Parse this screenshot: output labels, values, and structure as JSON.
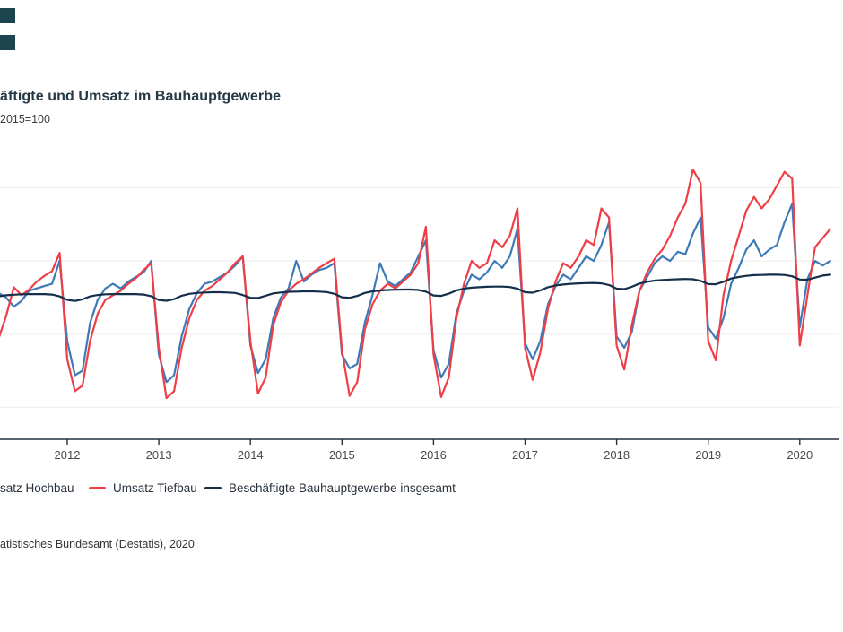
{
  "header": {
    "title": "äftigte und Umsatz im Bauhauptgewerbe",
    "subtitle": "2015=100"
  },
  "decor": {
    "square_color": "#1d4550"
  },
  "legend": {
    "items": [
      {
        "label": "satz Hochbau",
        "color": "#3d7ab7",
        "dash_visible": false
      },
      {
        "label": "Umsatz Tiefbau",
        "color": "#ef3e46",
        "dash_visible": true
      },
      {
        "label": "Beschäftigte Bauhauptgewerbe insgesamt",
        "color": "#142f49",
        "dash_visible": true
      }
    ]
  },
  "source": "atistisches Bundesamt (Destatis), 2020",
  "chart_data": {
    "type": "line",
    "title": "äftigte und Umsatz im Bauhauptgewerbe",
    "subtitle_unit": "2015=100",
    "frequency": "monthly",
    "x_start": "2011-04",
    "x_tick_labels": [
      "2012",
      "2013",
      "2014",
      "2015",
      "2016",
      "2017",
      "2018",
      "2019",
      "2020"
    ],
    "grid_on": true,
    "grid_values": [
      49,
      81,
      113,
      145
    ],
    "ylim": [
      35,
      162
    ],
    "legend_position": "bottom",
    "axis_color": "#223140",
    "grid_color": "#ededed",
    "series": [
      {
        "name": "Umsatz Hochbau",
        "color": "#3d7ab7",
        "values": [
          99,
          97,
          93,
          95.5,
          100,
          101,
          102,
          103,
          113,
          78,
          63,
          65,
          86,
          96,
          101,
          103,
          101,
          104,
          106,
          108,
          113,
          72,
          60,
          63,
          80,
          92,
          99,
          103,
          104,
          106,
          108,
          111,
          115,
          76,
          64,
          70,
          88,
          97,
          101,
          113,
          104,
          107,
          109,
          110,
          112,
          72,
          66,
          68,
          86,
          98,
          112,
          104,
          102,
          105,
          108,
          115,
          122,
          74,
          62,
          68,
          90,
          100,
          107,
          105,
          108,
          113,
          110,
          115,
          127,
          77,
          70,
          78,
          94,
          102,
          107,
          105,
          110,
          115,
          113,
          120,
          130,
          80,
          75,
          82,
          100,
          106,
          112,
          115,
          113,
          117,
          116,
          125,
          132,
          84,
          79,
          88,
          103,
          110,
          118,
          122,
          115,
          118,
          120,
          130,
          138,
          84,
          105,
          113,
          111,
          113
        ]
      },
      {
        "name": "Umsatz Tiefbau",
        "color": "#ef3e46",
        "values": [
          79,
          89,
          101.5,
          98,
          100.5,
          104,
          106.5,
          108.5,
          116.5,
          70,
          56,
          58.5,
          78,
          90,
          96,
          98,
          100,
          103,
          105.5,
          109,
          112,
          75,
          53,
          56,
          75,
          88,
          96,
          100,
          102,
          105,
          108,
          112,
          115,
          78,
          55,
          62,
          85,
          95,
          100,
          103,
          105,
          107.5,
          110,
          112,
          114,
          74,
          54,
          60,
          83,
          94,
          100,
          103,
          101,
          104,
          107,
          112,
          128,
          72,
          53.5,
          62,
          88,
          103,
          113,
          110,
          112,
          122,
          119,
          124,
          136,
          75,
          61,
          73,
          92,
          104,
          112,
          110,
          115,
          122,
          120,
          136,
          132,
          76,
          65.5,
          85,
          100,
          108,
          114,
          118,
          124,
          132,
          138,
          153,
          147,
          78,
          69.5,
          98,
          113,
          124,
          135,
          141,
          136,
          140,
          146,
          152,
          149,
          76,
          98,
          119,
          123,
          127
        ]
      },
      {
        "name": "Beschäftigte Bauhauptgewerbe insgesamt",
        "color": "#142f49",
        "values": [
          97.5,
          98,
          98.2,
          98.4,
          98.5,
          98.5,
          98.5,
          98.3,
          97.5,
          96,
          95.5,
          96.2,
          97.5,
          98.1,
          98.4,
          98.5,
          98.5,
          98.5,
          98.5,
          98.3,
          97.6,
          95.9,
          95.6,
          96.3,
          97.8,
          98.6,
          99,
          99.2,
          99.3,
          99.3,
          99.2,
          99,
          98.1,
          96.9,
          96.8,
          97.8,
          98.8,
          99.2,
          99.5,
          99.6,
          99.7,
          99.7,
          99.6,
          99.4,
          98.6,
          97.1,
          96.9,
          97.7,
          99,
          99.7,
          100.1,
          100.3,
          100.4,
          100.5,
          100.5,
          100.3,
          99.6,
          97.9,
          97.7,
          98.7,
          100.1,
          100.9,
          101.3,
          101.5,
          101.7,
          101.8,
          101.8,
          101.6,
          100.9,
          99.3,
          99.1,
          100.1,
          101.5,
          102.3,
          102.7,
          103,
          103.2,
          103.3,
          103.4,
          103.2,
          102.5,
          100.9,
          100.7,
          101.7,
          103.1,
          103.9,
          104.4,
          104.7,
          104.9,
          105,
          105.1,
          105,
          104.3,
          102.9,
          102.8,
          103.9,
          105.3,
          106,
          106.5,
          106.8,
          106.9,
          107,
          107,
          106.9,
          106.3,
          104.9,
          104.8,
          105.7,
          106.6,
          107
        ]
      }
    ]
  }
}
